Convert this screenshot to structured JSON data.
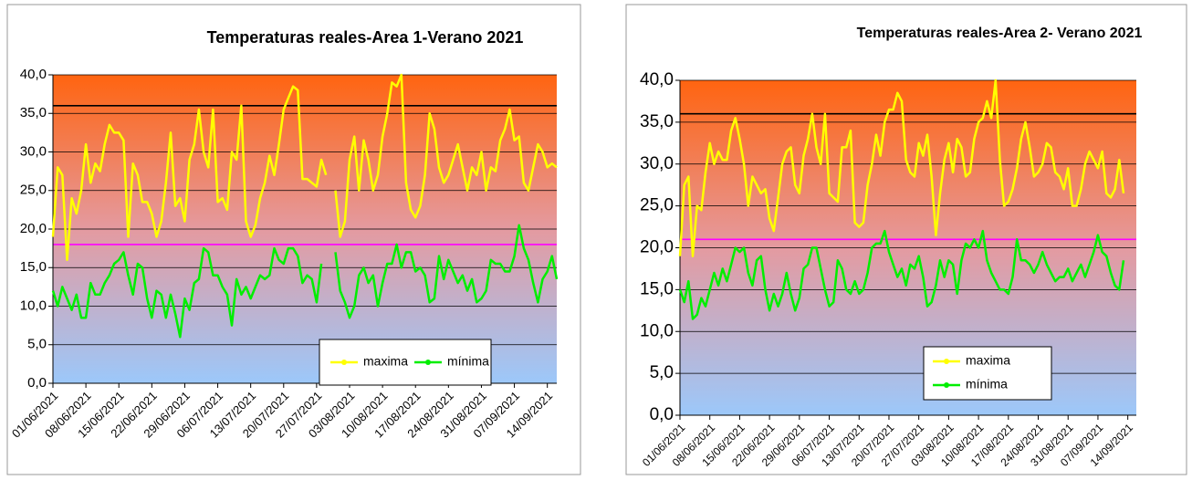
{
  "chart_data": [
    {
      "type": "line",
      "title": "Temperaturas reales-Area  1-Verano 2021",
      "categories": [
        "01/06/2021",
        null,
        null,
        null,
        null,
        null,
        null,
        "08/06/2021",
        null,
        null,
        null,
        null,
        null,
        null,
        "15/06/2021",
        null,
        null,
        null,
        null,
        null,
        null,
        "22/06/2021",
        null,
        null,
        null,
        null,
        null,
        null,
        "29/06/2021",
        null,
        null,
        null,
        null,
        null,
        null,
        "06/07/2021",
        null,
        null,
        null,
        null,
        null,
        null,
        "13/07/2021",
        null,
        null,
        null,
        null,
        null,
        null,
        "20/07/2021",
        null,
        null,
        null,
        null,
        null,
        null,
        "27/07/2021",
        null,
        null,
        null,
        null,
        null,
        null,
        "03/08/2021",
        null,
        null,
        null,
        null,
        null,
        null,
        "10/08/2021",
        null,
        null,
        null,
        null,
        null,
        null,
        "17/08/2021",
        null,
        null,
        null,
        null,
        null,
        null,
        "24/08/2021",
        null,
        null,
        null,
        null,
        null,
        null,
        "31/08/2021",
        null,
        null,
        null,
        null,
        null,
        null,
        "07/09/2021",
        null,
        null,
        null,
        null,
        null,
        null,
        "14/09/2021",
        null,
        null
      ],
      "series": [
        {
          "name": "maxima",
          "color": "#ffff00",
          "values": [
            19,
            28,
            27,
            16,
            24,
            22,
            25,
            31,
            26,
            28.5,
            27.5,
            31,
            33.5,
            32.5,
            32.5,
            31.5,
            19,
            28.5,
            27,
            23.5,
            23.5,
            22,
            19,
            21,
            26,
            32.5,
            23,
            24,
            21,
            29,
            31,
            35.5,
            30,
            28,
            35.5,
            23.5,
            24,
            22.5,
            30,
            29,
            36,
            21,
            19,
            20.5,
            24,
            26,
            29.5,
            27,
            31,
            35.5,
            37,
            38.5,
            38,
            26.5,
            26.5,
            26,
            25.5,
            29,
            27,
            null,
            25,
            19,
            21,
            29,
            32,
            25,
            31.5,
            29,
            25,
            27,
            32,
            35,
            39,
            38.5,
            40,
            26,
            22.5,
            21.5,
            23,
            27,
            35,
            33,
            28,
            26,
            27,
            29,
            31,
            28,
            25,
            28,
            27,
            30,
            25,
            28,
            27.5,
            31.5,
            33,
            35.5,
            31.5,
            32,
            26,
            25,
            28,
            31,
            30,
            28,
            28.5,
            28
          ]
        },
        {
          "name": "mínima",
          "color": "#00ee00",
          "values": [
            12,
            10,
            12.5,
            11,
            9.5,
            11.5,
            8.5,
            8.5,
            13,
            11.5,
            11.5,
            13,
            14,
            15.5,
            16,
            17,
            14,
            11.5,
            15.5,
            15,
            11,
            8.5,
            12,
            11.5,
            8.5,
            11.5,
            9,
            6,
            11,
            9.5,
            13,
            13.5,
            17.5,
            17,
            14,
            14,
            12.5,
            11.5,
            7.5,
            13.5,
            11.5,
            12.5,
            11,
            12.5,
            14,
            13.5,
            14,
            17.5,
            16,
            15.5,
            17.5,
            17.5,
            16.5,
            13,
            14,
            13.5,
            10.5,
            15.5,
            null,
            null,
            17,
            12,
            10.5,
            8.5,
            10,
            14,
            15,
            13,
            14,
            10,
            13,
            15.5,
            15.5,
            18,
            15,
            17,
            17,
            14.5,
            15,
            14,
            10.5,
            11,
            16.5,
            13.5,
            16,
            14.5,
            13,
            14,
            12,
            13.5,
            10.5,
            11,
            12,
            16,
            15.5,
            15.5,
            14.5,
            14.5,
            16.5,
            20.5,
            17.5,
            16,
            13,
            10.5,
            13.5,
            14.5,
            16.5,
            13.5
          ]
        }
      ],
      "ylim": [
        0,
        40
      ],
      "yticks": [
        {
          "value": 0,
          "label": "0,0"
        },
        {
          "value": 5,
          "label": "5,0"
        },
        {
          "value": 10,
          "label": "10,0"
        },
        {
          "value": 15,
          "label": "15,0"
        },
        {
          "value": 20,
          "label": "20,0"
        },
        {
          "value": 25,
          "label": "25,0"
        },
        {
          "value": 30,
          "label": "30,0"
        },
        {
          "value": 35,
          "label": "35,0"
        },
        {
          "value": 40,
          "label": "40,0"
        }
      ],
      "grid": true,
      "reference_lines": [
        {
          "value": 36,
          "color": "#000000"
        },
        {
          "value": 18,
          "color": "#ff00ff"
        }
      ],
      "background_gradient": [
        "#ff6410",
        "#e49aa0",
        "#9cc8fa"
      ],
      "legend": "lower right"
    },
    {
      "type": "line",
      "title": "Temperaturas reales-Area  2- Verano 2021",
      "categories": [
        "01/06/2021",
        null,
        null,
        null,
        null,
        null,
        null,
        "08/06/2021",
        null,
        null,
        null,
        null,
        null,
        null,
        "15/06/2021",
        null,
        null,
        null,
        null,
        null,
        null,
        "22/06/2021",
        null,
        null,
        null,
        null,
        null,
        null,
        "29/06/2021",
        null,
        null,
        null,
        null,
        null,
        null,
        "06/07/2021",
        null,
        null,
        null,
        null,
        null,
        null,
        "13/07/2021",
        null,
        null,
        null,
        null,
        null,
        null,
        "20/07/2021",
        null,
        null,
        null,
        null,
        null,
        null,
        "27/07/2021",
        null,
        null,
        null,
        null,
        null,
        null,
        "03/08/2021",
        null,
        null,
        null,
        null,
        null,
        null,
        "10/08/2021",
        null,
        null,
        null,
        null,
        null,
        null,
        "17/08/2021",
        null,
        null,
        null,
        null,
        null,
        null,
        "24/08/2021",
        null,
        null,
        null,
        null,
        null,
        null,
        "31/08/2021",
        null,
        null,
        null,
        null,
        null,
        null,
        "07/09/2021",
        null,
        null,
        null,
        null,
        null,
        null,
        "14/09/2021",
        null,
        null
      ],
      "series": [
        {
          "name": "maxima",
          "color": "#ffff00",
          "values": [
            19,
            27.5,
            28.5,
            19,
            25,
            24.5,
            29,
            32.5,
            30,
            31.5,
            30.5,
            30.5,
            34,
            35.5,
            33,
            30,
            25,
            28.5,
            27.5,
            26.5,
            27,
            23.5,
            22,
            26,
            30,
            31.5,
            32,
            27.5,
            26.5,
            31,
            33,
            36,
            32,
            30,
            36,
            26.5,
            26,
            25.5,
            32,
            32,
            34,
            23,
            22.5,
            23,
            27.5,
            30,
            33.5,
            31,
            35,
            36.5,
            36.5,
            38.5,
            37.5,
            30.5,
            29,
            28.5,
            32.5,
            31,
            33.5,
            28.5,
            21.5,
            26.5,
            30.5,
            32.5,
            29,
            33,
            32,
            28.5,
            29,
            33,
            35,
            35.5,
            37.5,
            35.5,
            40,
            30.5,
            25,
            25.5,
            27,
            29.5,
            33,
            35,
            32,
            28.5,
            29,
            30,
            32.5,
            32,
            29,
            28.5,
            27,
            29.5,
            25,
            25,
            27,
            30,
            31.5,
            30.5,
            29.5,
            31.5,
            26.5,
            26,
            27,
            30.5,
            26.5,
            null,
            null,
            null
          ]
        },
        {
          "name": "mínima",
          "color": "#00ee00",
          "values": [
            15,
            13.5,
            16,
            11.5,
            12,
            14,
            13,
            15,
            17,
            15.5,
            17.5,
            16,
            18,
            20,
            19.5,
            20,
            17,
            15.5,
            18.5,
            19,
            15,
            12.5,
            14.5,
            13,
            14.5,
            17,
            14.5,
            12.5,
            14,
            17.5,
            18,
            20,
            20,
            17.5,
            15,
            13,
            13.5,
            18.5,
            17.5,
            15,
            14.5,
            16,
            14.5,
            15,
            17,
            20,
            20.5,
            20.5,
            22,
            19.5,
            18,
            16.5,
            17.5,
            15.5,
            18,
            17.5,
            19,
            16.5,
            13,
            13.5,
            15.5,
            18.5,
            16.5,
            18.5,
            18,
            14.5,
            18.5,
            20.5,
            20,
            21,
            20,
            22,
            18.5,
            17,
            16,
            15,
            15,
            14.5,
            16.5,
            21,
            18.5,
            18.5,
            18,
            17,
            18,
            19.5,
            18,
            17,
            16,
            16.5,
            16.5,
            17.5,
            16,
            17,
            18,
            16.5,
            18,
            19.5,
            21.5,
            19.5,
            19,
            17,
            15.5,
            15,
            18.5,
            null,
            null,
            null
          ]
        }
      ],
      "ylim": [
        0,
        40
      ],
      "yticks": [
        {
          "value": 0,
          "label": "0,0"
        },
        {
          "value": 5,
          "label": "5,0"
        },
        {
          "value": 10,
          "label": "10,0"
        },
        {
          "value": 15,
          "label": "15,0"
        },
        {
          "value": 20,
          "label": "20,0"
        },
        {
          "value": 25,
          "label": "25,0"
        },
        {
          "value": 30,
          "label": "30,0"
        },
        {
          "value": 35,
          "label": "35,0"
        },
        {
          "value": 40,
          "label": "40,0"
        }
      ],
      "grid": true,
      "reference_lines": [
        {
          "value": 36,
          "color": "#000000"
        },
        {
          "value": 21,
          "color": "#ff00ff"
        }
      ],
      "background_gradient": [
        "#ff6410",
        "#e49aa0",
        "#9cc8fa"
      ],
      "legend": "lower left"
    }
  ]
}
